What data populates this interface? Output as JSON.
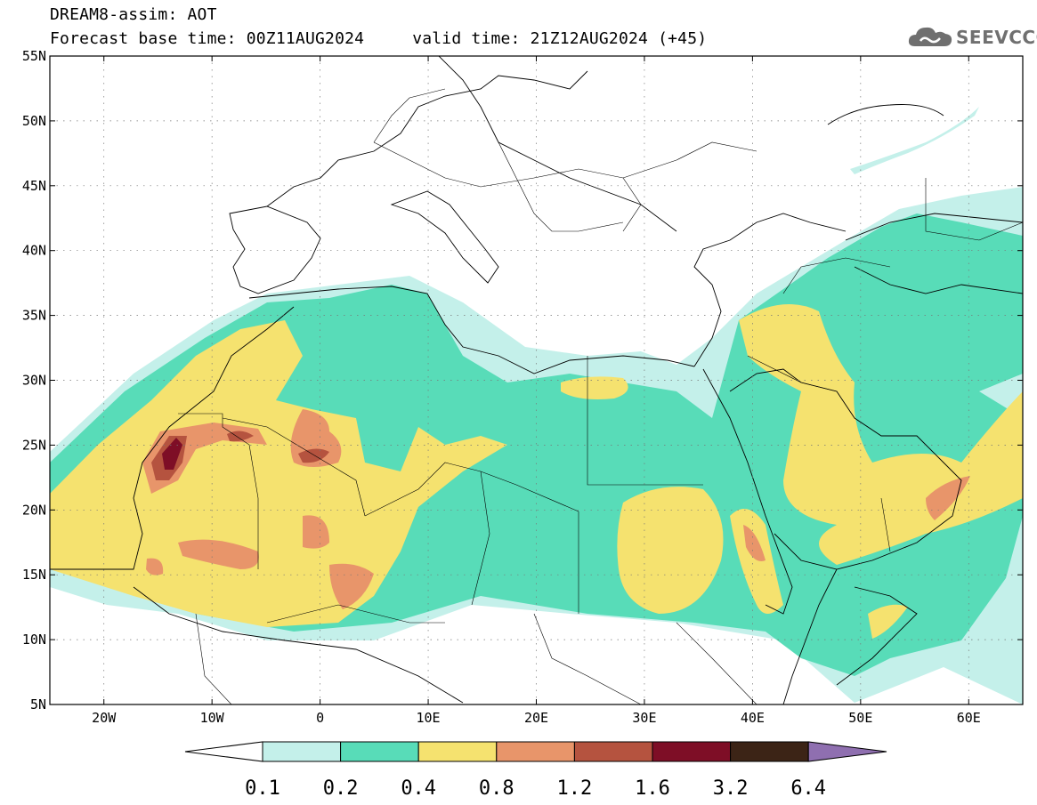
{
  "header": {
    "title": "DREAM8-assim: AOT",
    "base_time": "Forecast base time: 00Z11AUG2024",
    "valid_time": "valid time: 21Z12AUG2024 (+45)"
  },
  "logo": {
    "text": "SEEVCCC",
    "icon": "cloud-icon"
  },
  "map": {
    "lon_range": [
      -25,
      65
    ],
    "lat_range": [
      5,
      55
    ],
    "lat_ticks": [
      {
        "value": 55,
        "label": "55N"
      },
      {
        "value": 50,
        "label": "50N"
      },
      {
        "value": 45,
        "label": "45N"
      },
      {
        "value": 40,
        "label": "40N"
      },
      {
        "value": 35,
        "label": "35N"
      },
      {
        "value": 30,
        "label": "30N"
      },
      {
        "value": 25,
        "label": "25N"
      },
      {
        "value": 20,
        "label": "20N"
      },
      {
        "value": 15,
        "label": "15N"
      },
      {
        "value": 10,
        "label": "10N"
      },
      {
        "value": 5,
        "label": "5N"
      }
    ],
    "lon_ticks": [
      {
        "value": -20,
        "label": "20W"
      },
      {
        "value": -10,
        "label": "10W"
      },
      {
        "value": 0,
        "label": "0"
      },
      {
        "value": 10,
        "label": "10E"
      },
      {
        "value": 20,
        "label": "20E"
      },
      {
        "value": 30,
        "label": "30E"
      },
      {
        "value": 40,
        "label": "40E"
      },
      {
        "value": 50,
        "label": "50E"
      },
      {
        "value": 60,
        "label": "60E"
      }
    ],
    "grid": true
  },
  "colorbar": {
    "levels": [
      "0.1",
      "0.2",
      "0.4",
      "0.8",
      "1.2",
      "1.6",
      "3.2",
      "6.4"
    ],
    "colors": [
      "#c4f0ea",
      "#58dcb8",
      "#f5e26f",
      "#e8956a",
      "#b5533f",
      "#7e0e26",
      "#3c2416",
      "#8f6fb0"
    ],
    "low_color": "#ffffff"
  },
  "colors": {
    "aot_0_1": "#c4f0ea",
    "aot_0_2": "#58dcb8",
    "aot_0_4": "#f5e26f",
    "aot_0_8": "#e8956a",
    "aot_1_2": "#b5533f",
    "aot_1_6": "#7e0e26"
  }
}
